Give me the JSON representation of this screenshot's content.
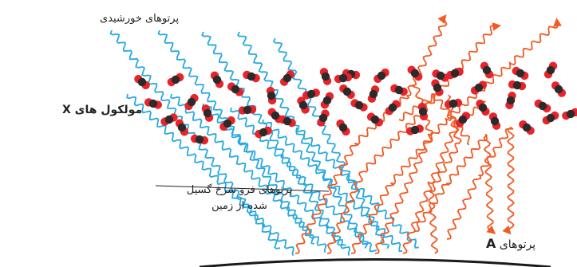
{
  "labels": {
    "sun_rays": "پرتوهای خورشیدی",
    "molecules_prefix": "مولکول های",
    "molecules_var": "X",
    "ir_line1": "پرتوهای فرو سرخ گسیل",
    "ir_line2": "شده از زمین",
    "rays_a_prefix": "پرتوهای",
    "rays_a_var": "A"
  },
  "colors": {
    "sun_rays": "#29a9e0",
    "ir_rays": "#f15a24",
    "molecule_red": "#e8232a",
    "molecule_dark": "#2b2b2b",
    "ground": "#1a1a1a"
  }
}
